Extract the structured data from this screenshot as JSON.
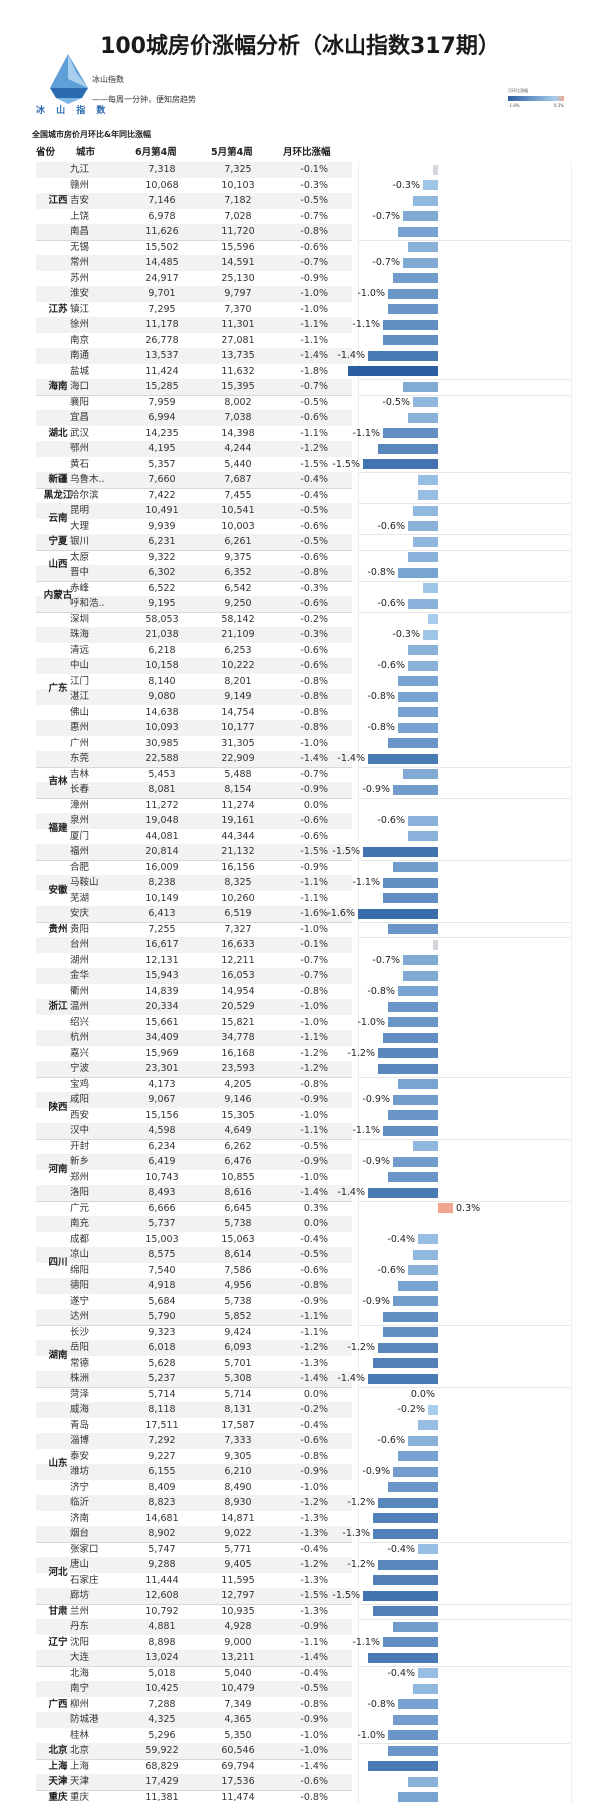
{
  "title": "100城房价涨幅分析（冰山指数317期）",
  "brand": {
    "logo_text": "冰 山 指 数",
    "name": "冰山指数",
    "slogan": "——每周一分钟，便知房趋势"
  },
  "legend": {
    "title": "月环比涨幅",
    "min_label": "-1.8%",
    "max_label": "0.3%"
  },
  "section_title": "全国城市房价月环比&年同比涨幅",
  "colors": {
    "bar_dark": "#2a5ea0",
    "bar_light": "#a8cdec",
    "bar_near_zero": "#d3d7db",
    "bar_positive": "#f1a58e"
  },
  "chart_data": {
    "type": "table",
    "columns": [
      "省份",
      "城市",
      "6月第4周",
      "5月第4周",
      "月环比涨幅"
    ],
    "bar_column": "月环比涨幅",
    "xlim": [
      -1.8,
      0.3
    ],
    "groups": [
      {
        "province": "江西",
        "rows": [
          [
            "九江",
            "7,318",
            "7,325",
            -0.1,
            0
          ],
          [
            "赣州",
            "10,068",
            "10,103",
            -0.3,
            1
          ],
          [
            "吉安",
            "7,146",
            "7,182",
            -0.5,
            0
          ],
          [
            "上饶",
            "6,978",
            "7,028",
            -0.7,
            1
          ],
          [
            "南昌",
            "11,626",
            "11,720",
            -0.8,
            0
          ]
        ]
      },
      {
        "province": "江苏",
        "rows": [
          [
            "无锡",
            "15,502",
            "15,596",
            -0.6,
            0
          ],
          [
            "常州",
            "14,485",
            "14,591",
            -0.7,
            1
          ],
          [
            "苏州",
            "24,917",
            "25,130",
            -0.9,
            0
          ],
          [
            "淮安",
            "9,701",
            "9,797",
            -1.0,
            1
          ],
          [
            "镇江",
            "7,295",
            "7,370",
            -1.0,
            0
          ],
          [
            "徐州",
            "11,178",
            "11,301",
            -1.1,
            1
          ],
          [
            "南京",
            "26,778",
            "27,081",
            -1.1,
            0
          ],
          [
            "南通",
            "13,537",
            "13,735",
            -1.4,
            1
          ],
          [
            "盐城",
            "11,424",
            "11,632",
            -1.8,
            0
          ]
        ]
      },
      {
        "province": "海南",
        "rows": [
          [
            "海口",
            "15,285",
            "15,395",
            -0.7,
            0
          ]
        ]
      },
      {
        "province": "湖北",
        "rows": [
          [
            "襄阳",
            "7,959",
            "8,002",
            -0.5,
            1
          ],
          [
            "宜昌",
            "6,994",
            "7,038",
            -0.6,
            0
          ],
          [
            "武汉",
            "14,235",
            "14,398",
            -1.1,
            1
          ],
          [
            "鄂州",
            "4,195",
            "4,244",
            -1.2,
            0
          ],
          [
            "黄石",
            "5,357",
            "5,440",
            -1.5,
            1
          ]
        ]
      },
      {
        "province": "新疆",
        "rows": [
          [
            "乌鲁木..",
            "7,660",
            "7,687",
            -0.4,
            0
          ]
        ]
      },
      {
        "province": "黑龙江",
        "rows": [
          [
            "哈尔滨",
            "7,422",
            "7,455",
            -0.4,
            0
          ]
        ]
      },
      {
        "province": "云南",
        "rows": [
          [
            "昆明",
            "10,491",
            "10,541",
            -0.5,
            0
          ],
          [
            "大理",
            "9,939",
            "10,003",
            -0.6,
            1
          ]
        ]
      },
      {
        "province": "宁夏",
        "rows": [
          [
            "银川",
            "6,231",
            "6,261",
            -0.5,
            0
          ]
        ]
      },
      {
        "province": "山西",
        "rows": [
          [
            "太原",
            "9,322",
            "9,375",
            -0.6,
            0
          ],
          [
            "晋中",
            "6,302",
            "6,352",
            -0.8,
            1
          ]
        ]
      },
      {
        "province": "内蒙古",
        "rows": [
          [
            "赤峰",
            "6,522",
            "6,542",
            -0.3,
            0
          ],
          [
            "呼和浩..",
            "9,195",
            "9,250",
            -0.6,
            1
          ]
        ]
      },
      {
        "province": "广东",
        "rows": [
          [
            "深圳",
            "58,053",
            "58,142",
            -0.2,
            0
          ],
          [
            "珠海",
            "21,038",
            "21,109",
            -0.3,
            1
          ],
          [
            "清远",
            "6,218",
            "6,253",
            -0.6,
            0
          ],
          [
            "中山",
            "10,158",
            "10,222",
            -0.6,
            1
          ],
          [
            "江门",
            "8,140",
            "8,201",
            -0.8,
            0
          ],
          [
            "湛江",
            "9,080",
            "9,149",
            -0.8,
            1
          ],
          [
            "佛山",
            "14,638",
            "14,754",
            -0.8,
            0
          ],
          [
            "惠州",
            "10,093",
            "10,177",
            -0.8,
            1
          ],
          [
            "广州",
            "30,985",
            "31,305",
            -1.0,
            0
          ],
          [
            "东莞",
            "22,588",
            "22,909",
            -1.4,
            1
          ]
        ]
      },
      {
        "province": "吉林",
        "rows": [
          [
            "吉林",
            "5,453",
            "5,488",
            -0.7,
            0
          ],
          [
            "长春",
            "8,081",
            "8,154",
            -0.9,
            1
          ]
        ]
      },
      {
        "province": "福建",
        "rows": [
          [
            "漳州",
            "11,272",
            "11,274",
            0.0,
            0
          ],
          [
            "泉州",
            "19,048",
            "19,161",
            -0.6,
            1
          ],
          [
            "厦门",
            "44,081",
            "44,344",
            -0.6,
            0
          ],
          [
            "福州",
            "20,814",
            "21,132",
            -1.5,
            1
          ]
        ]
      },
      {
        "province": "安徽",
        "rows": [
          [
            "合肥",
            "16,009",
            "16,156",
            -0.9,
            0
          ],
          [
            "马鞍山",
            "8,238",
            "8,325",
            -1.1,
            1
          ],
          [
            "芜湖",
            "10,149",
            "10,260",
            -1.1,
            0
          ],
          [
            "安庆",
            "6,413",
            "6,519",
            -1.6,
            1
          ]
        ]
      },
      {
        "province": "贵州",
        "rows": [
          [
            "贵阳",
            "7,255",
            "7,327",
            -1.0,
            0
          ]
        ]
      },
      {
        "province": "浙江",
        "rows": [
          [
            "台州",
            "16,617",
            "16,633",
            -0.1,
            0
          ],
          [
            "湖州",
            "12,131",
            "12,211",
            -0.7,
            1
          ],
          [
            "金华",
            "15,943",
            "16,053",
            -0.7,
            0
          ],
          [
            "衢州",
            "14,839",
            "14,954",
            -0.8,
            1
          ],
          [
            "温州",
            "20,334",
            "20,529",
            -1.0,
            0
          ],
          [
            "绍兴",
            "15,661",
            "15,821",
            -1.0,
            1
          ],
          [
            "杭州",
            "34,409",
            "34,778",
            -1.1,
            0
          ],
          [
            "嘉兴",
            "15,969",
            "16,168",
            -1.2,
            1
          ],
          [
            "宁波",
            "23,301",
            "23,593",
            -1.2,
            0
          ]
        ]
      },
      {
        "province": "陕西",
        "rows": [
          [
            "宝鸡",
            "4,173",
            "4,205",
            -0.8,
            0
          ],
          [
            "咸阳",
            "9,067",
            "9,146",
            -0.9,
            1
          ],
          [
            "西安",
            "15,156",
            "15,305",
            -1.0,
            0
          ],
          [
            "汉中",
            "4,598",
            "4,649",
            -1.1,
            1
          ]
        ]
      },
      {
        "province": "河南",
        "rows": [
          [
            "开封",
            "6,234",
            "6,262",
            -0.5,
            0
          ],
          [
            "新乡",
            "6,419",
            "6,476",
            -0.9,
            1
          ],
          [
            "郑州",
            "10,743",
            "10,855",
            -1.0,
            0
          ],
          [
            "洛阳",
            "8,493",
            "8,616",
            -1.4,
            1
          ]
        ]
      },
      {
        "province": "四川",
        "rows": [
          [
            "广元",
            "6,666",
            "6,645",
            0.3,
            1
          ],
          [
            "南充",
            "5,737",
            "5,738",
            0.0,
            0
          ],
          [
            "成都",
            "15,003",
            "15,063",
            -0.4,
            1
          ],
          [
            "凉山",
            "8,575",
            "8,614",
            -0.5,
            0
          ],
          [
            "绵阳",
            "7,540",
            "7,586",
            -0.6,
            1
          ],
          [
            "德阳",
            "4,918",
            "4,956",
            -0.8,
            0
          ],
          [
            "遂宁",
            "5,684",
            "5,738",
            -0.9,
            1
          ],
          [
            "达州",
            "5,790",
            "5,852",
            -1.1,
            0
          ]
        ]
      },
      {
        "province": "湖南",
        "rows": [
          [
            "长沙",
            "9,323",
            "9,424",
            -1.1,
            0
          ],
          [
            "岳阳",
            "6,018",
            "6,093",
            -1.2,
            1
          ],
          [
            "常德",
            "5,628",
            "5,701",
            -1.3,
            0
          ],
          [
            "株洲",
            "5,237",
            "5,308",
            -1.4,
            1
          ]
        ]
      },
      {
        "province": "山东",
        "rows": [
          [
            "菏泽",
            "5,714",
            "5,714",
            0.0,
            1
          ],
          [
            "威海",
            "8,118",
            "8,131",
            -0.2,
            1
          ],
          [
            "青岛",
            "17,511",
            "17,587",
            -0.4,
            0
          ],
          [
            "淄博",
            "7,292",
            "7,333",
            -0.6,
            1
          ],
          [
            "泰安",
            "9,227",
            "9,305",
            -0.8,
            0
          ],
          [
            "潍坊",
            "6,155",
            "6,210",
            -0.9,
            1
          ],
          [
            "济宁",
            "8,409",
            "8,490",
            -1.0,
            0
          ],
          [
            "临沂",
            "8,823",
            "8,930",
            -1.2,
            1
          ],
          [
            "济南",
            "14,681",
            "14,871",
            -1.3,
            0
          ],
          [
            "烟台",
            "8,902",
            "9,022",
            -1.3,
            1
          ]
        ]
      },
      {
        "province": "河北",
        "rows": [
          [
            "张家口",
            "5,747",
            "5,771",
            -0.4,
            1
          ],
          [
            "唐山",
            "9,288",
            "9,405",
            -1.2,
            1
          ],
          [
            "石家庄",
            "11,444",
            "11,595",
            -1.3,
            0
          ],
          [
            "廊坊",
            "12,608",
            "12,797",
            -1.5,
            1
          ]
        ]
      },
      {
        "province": "甘肃",
        "rows": [
          [
            "兰州",
            "10,792",
            "10,935",
            -1.3,
            0
          ]
        ]
      },
      {
        "province": "辽宁",
        "rows": [
          [
            "丹东",
            "4,881",
            "4,928",
            -0.9,
            0
          ],
          [
            "沈阳",
            "8,898",
            "9,000",
            -1.1,
            1
          ],
          [
            "大连",
            "13,024",
            "13,211",
            -1.4,
            0
          ]
        ]
      },
      {
        "province": "广西",
        "rows": [
          [
            "北海",
            "5,018",
            "5,040",
            -0.4,
            1
          ],
          [
            "南宁",
            "10,425",
            "10,479",
            -0.5,
            0
          ],
          [
            "柳州",
            "7,288",
            "7,349",
            -0.8,
            1
          ],
          [
            "防城港",
            "4,325",
            "4,365",
            -0.9,
            0
          ],
          [
            "桂林",
            "5,296",
            "5,350",
            -1.0,
            1
          ]
        ]
      },
      {
        "province": "北京",
        "rows": [
          [
            "北京",
            "59,922",
            "60,546",
            -1.0,
            0
          ]
        ]
      },
      {
        "province": "上海",
        "rows": [
          [
            "上海",
            "68,829",
            "69,794",
            -1.4,
            0
          ]
        ]
      },
      {
        "province": "天津",
        "rows": [
          [
            "天津",
            "17,429",
            "17,536",
            -0.6,
            0
          ]
        ]
      },
      {
        "province": "重庆",
        "rows": [
          [
            "重庆",
            "11,381",
            "11,474",
            -0.8,
            0
          ]
        ]
      }
    ]
  }
}
